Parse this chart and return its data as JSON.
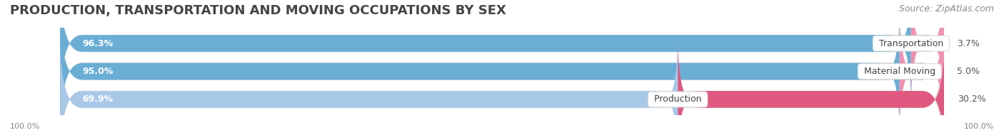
{
  "title": "PRODUCTION, TRANSPORTATION AND MOVING OCCUPATIONS BY SEX",
  "source": "Source: ZipAtlas.com",
  "categories": [
    "Transportation",
    "Material Moving",
    "Production"
  ],
  "male_pct": [
    96.3,
    95.0,
    69.9
  ],
  "female_pct": [
    3.7,
    5.0,
    30.2
  ],
  "male_color_transport": "#6aaed6",
  "male_color_material": "#6aaed6",
  "male_color_production": "#a8c8e8",
  "female_color_transport": "#f48fb1",
  "female_color_material": "#f48fb1",
  "female_color_production": "#e05880",
  "bg_color": "#f0f0f0",
  "bar_bg_color": "#e8e8e8",
  "title_fontsize": 13,
  "source_fontsize": 9,
  "label_fontsize": 9,
  "pct_fontsize": 9,
  "axis_label": "100.0%"
}
